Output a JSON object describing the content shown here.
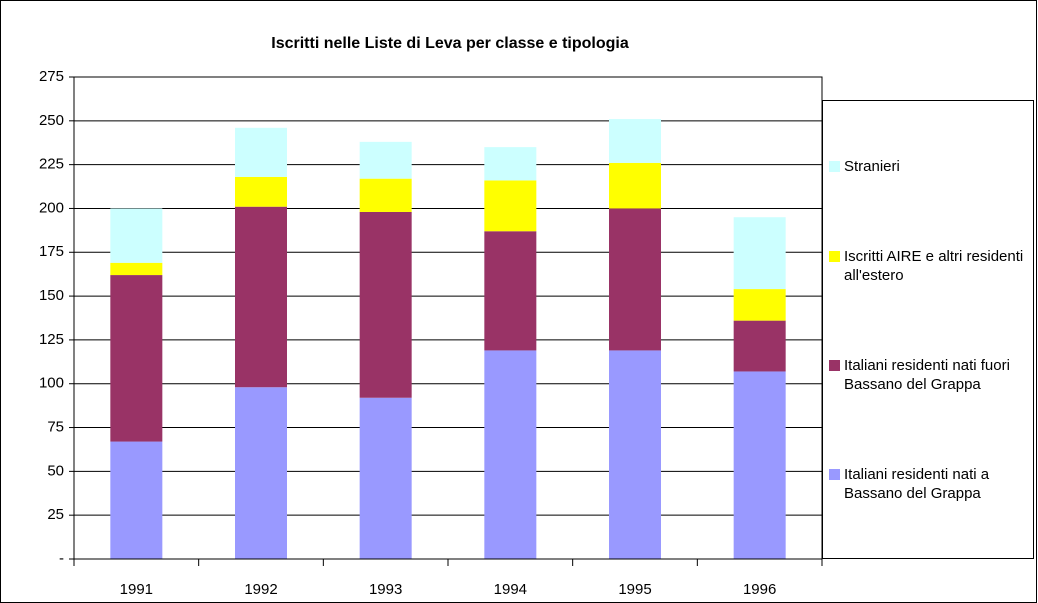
{
  "chart_data": {
    "type": "stacked_bar",
    "title": "Iscritti nelle Liste di Leva per classe e tipologia",
    "categories": [
      "1991",
      "1992",
      "1993",
      "1994",
      "1995",
      "1996"
    ],
    "series": [
      {
        "name": "Italiani residenti nati a Bassano del Grappa",
        "color": "#9999ff",
        "values": [
          67,
          98,
          92,
          119,
          119,
          107
        ]
      },
      {
        "name": "Italiani residenti nati fuori Bassano del Grappa",
        "color": "#993366",
        "values": [
          95,
          103,
          106,
          68,
          81,
          29
        ]
      },
      {
        "name": "Iscritti AIRE e altri residenti all'estero",
        "color": "#ffff00",
        "values": [
          7,
          17,
          19,
          29,
          26,
          18
        ]
      },
      {
        "name": "Stranieri",
        "color": "#ccffff",
        "values": [
          31,
          28,
          21,
          19,
          25,
          41
        ]
      }
    ],
    "ylim": [
      0,
      275
    ],
    "yticks": [
      {
        "value": 0,
        "label": "-"
      },
      25,
      50,
      75,
      100,
      125,
      150,
      175,
      200,
      225,
      250,
      275
    ],
    "grid": true
  }
}
